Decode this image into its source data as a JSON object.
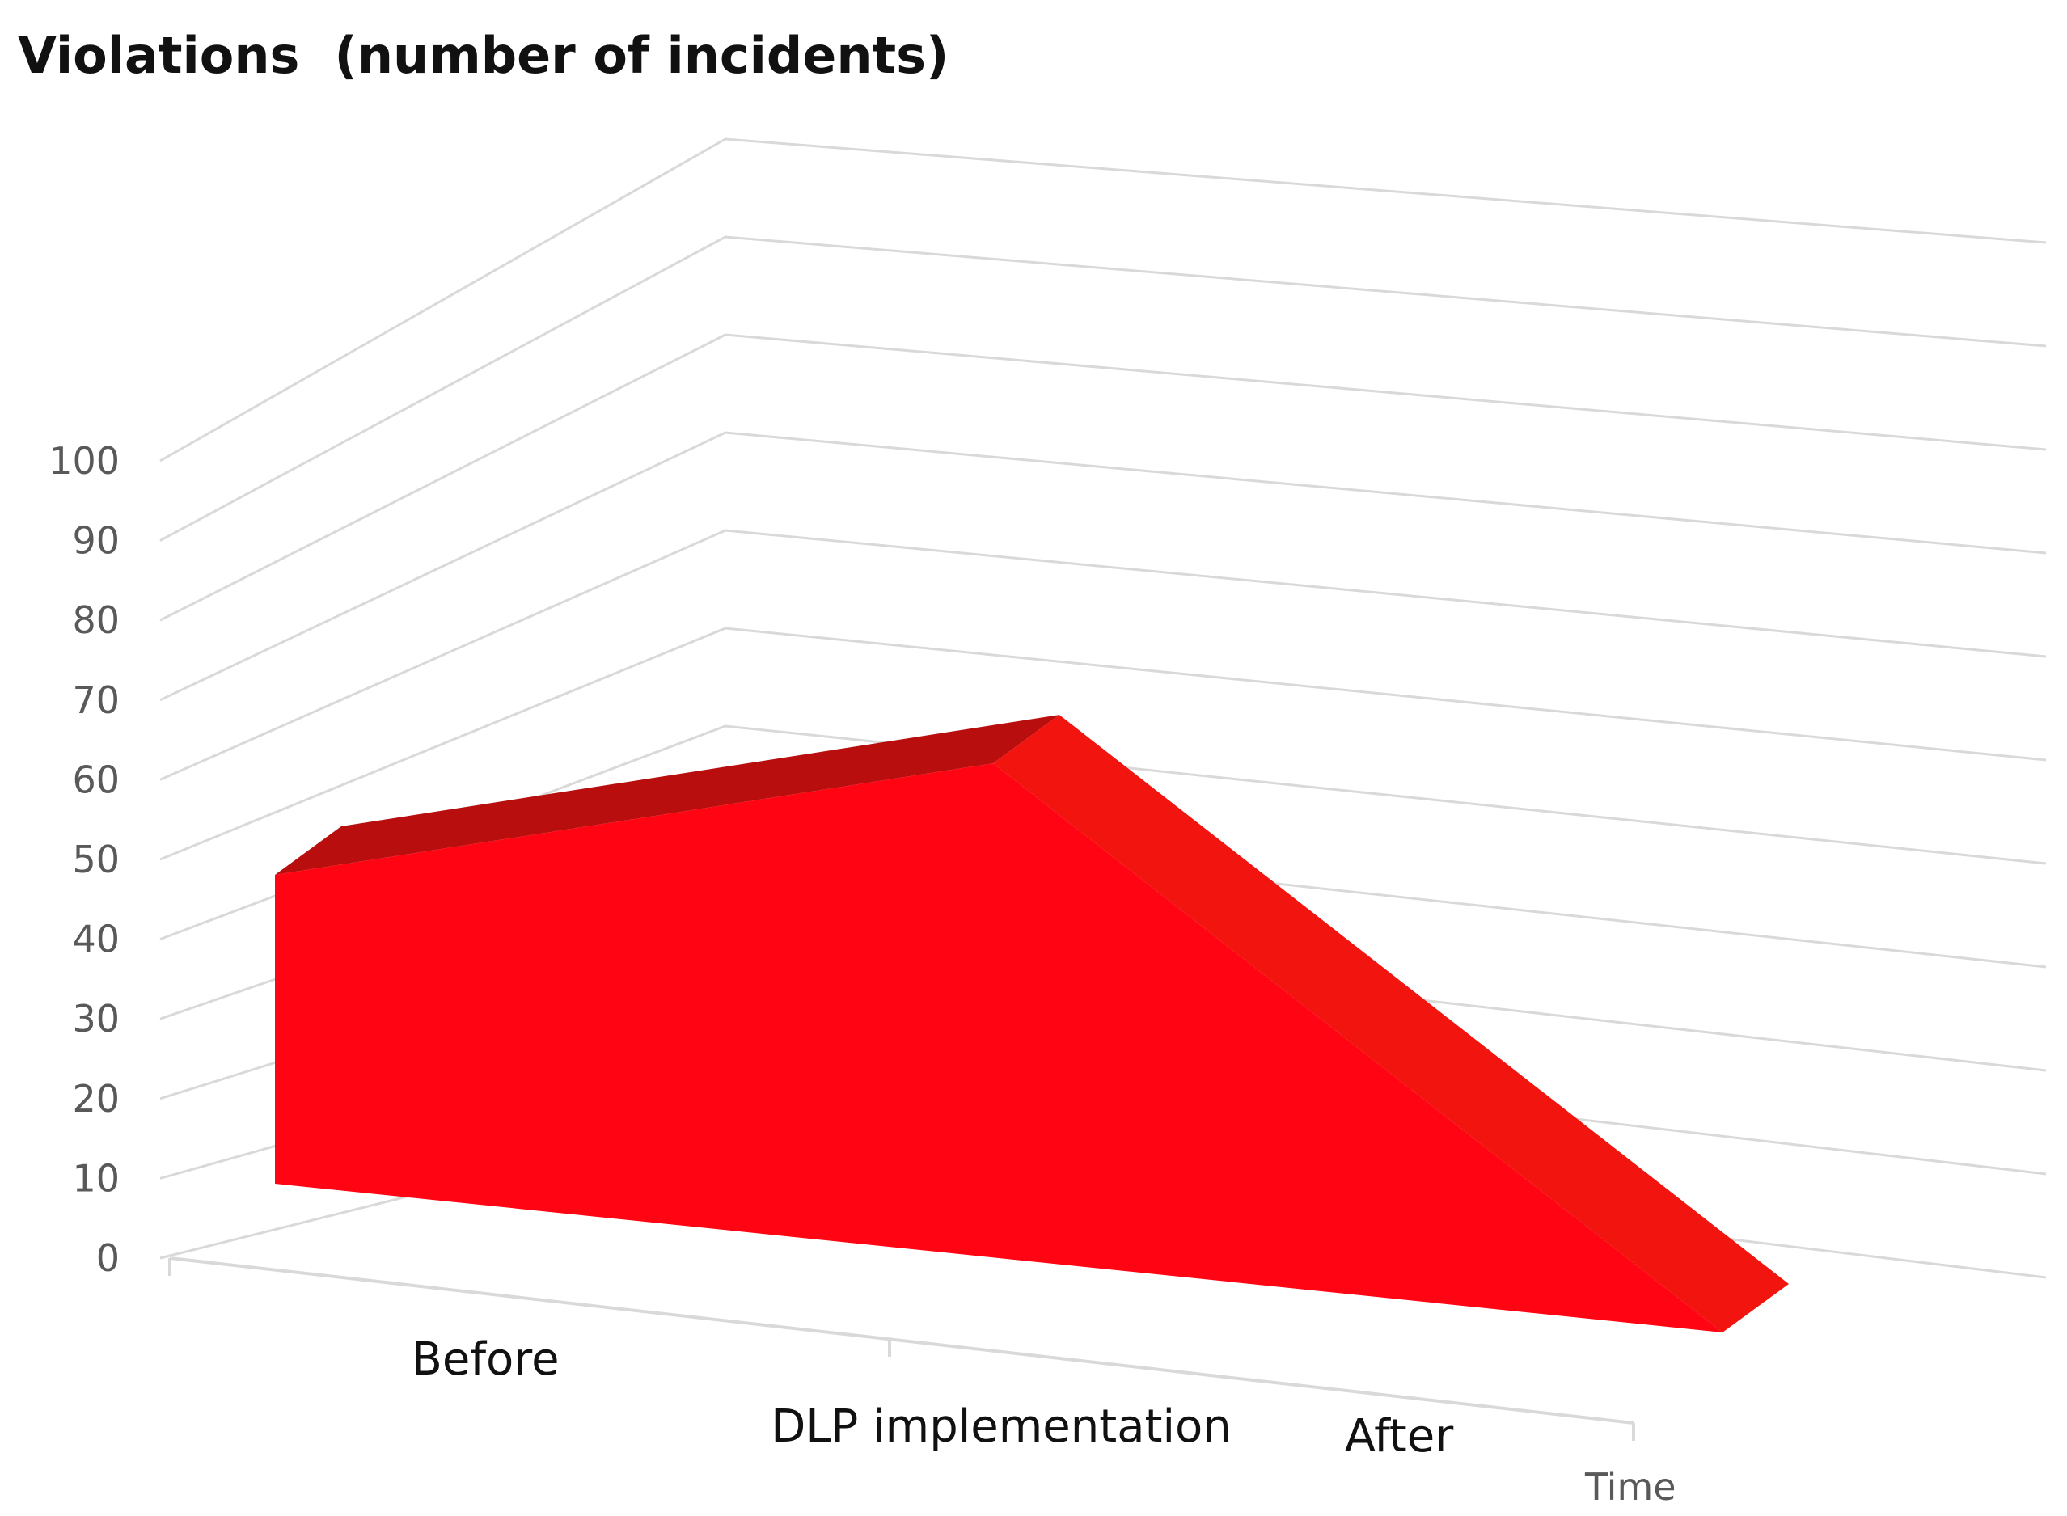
{
  "chart_data": {
    "type": "area",
    "title": "Violations  (number of incidents)",
    "xlabel": "Time",
    "ylabel": "",
    "categories": [
      "Before",
      "DLP implementation",
      "After"
    ],
    "series": [
      {
        "values": [
          50,
          80,
          0
        ]
      }
    ],
    "ylim": [
      0,
      100
    ],
    "y_ticks": [
      "0",
      "10",
      "20",
      "30",
      "40",
      "50",
      "60",
      "70",
      "80",
      "90",
      "100"
    ],
    "grid": true,
    "legend": "none",
    "three_d": true,
    "colors": {
      "front": "#ff0412",
      "top": "#b80f0e",
      "slope": "#f2140f",
      "end": "#c00d0c",
      "grid": "#d9d9d9"
    }
  }
}
